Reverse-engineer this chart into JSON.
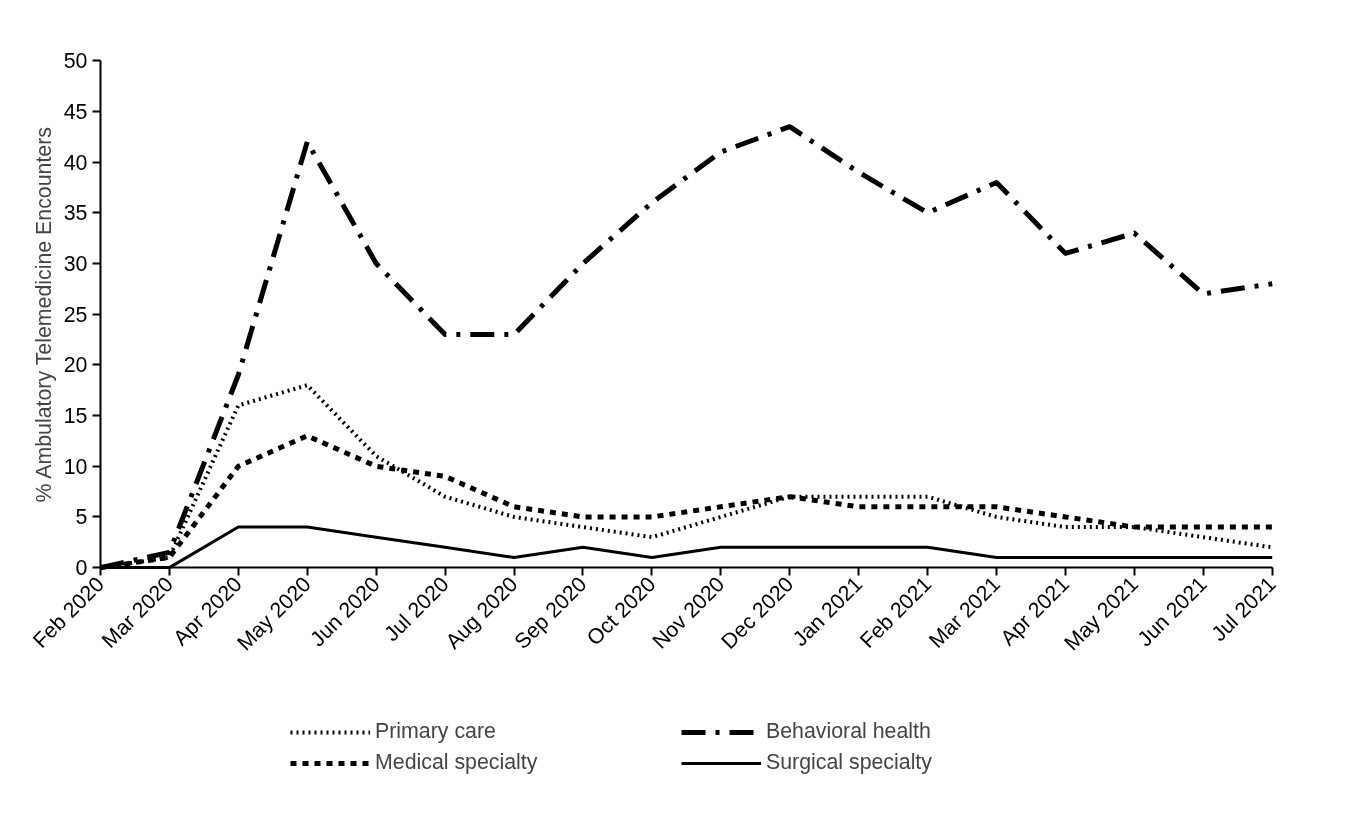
{
  "chart_data": {
    "type": "line",
    "ylabel": "% Ambulatory Telemedicine Encounters",
    "categories": [
      "Feb 2020",
      "Mar 2020",
      "Apr 2020",
      "May 2020",
      "Jun 2020",
      "Jul 2020",
      "Aug 2020",
      "Sep 2020",
      "Oct 2020",
      "Nov 2020",
      "Dec 2020",
      "Jan 2021",
      "Feb 2021",
      "Mar 2021",
      "Apr 2021",
      "May 2021",
      "Jun 2021",
      "Jul 2021"
    ],
    "ylim": [
      0,
      50
    ],
    "yticks": [
      0,
      5,
      10,
      15,
      20,
      25,
      30,
      35,
      40,
      45,
      50
    ],
    "grid": false,
    "legend": "bottom",
    "marker": "none",
    "series": [
      {
        "name": "Primary care",
        "color": "#000000",
        "line_style": "dotted",
        "values": [
          0,
          1,
          16,
          18,
          11,
          7,
          5,
          4,
          3,
          5,
          7,
          7,
          7,
          5,
          4,
          4,
          3,
          2
        ]
      },
      {
        "name": "Behavioral health",
        "color": "#000000",
        "line_style": "dashdot",
        "values": [
          0,
          1.5,
          19,
          42,
          30,
          23,
          23,
          30,
          36,
          41,
          43.5,
          39,
          35,
          38,
          31,
          33,
          27,
          28
        ]
      },
      {
        "name": "Medical specialty",
        "color": "#000000",
        "line_style": "dashed",
        "values": [
          0,
          1,
          10,
          13,
          10,
          9,
          6,
          5,
          5,
          6,
          7,
          6,
          6,
          6,
          5,
          4,
          4,
          4
        ]
      },
      {
        "name": "Surgical specialty",
        "color": "#000000",
        "line_style": "solid",
        "values": [
          0,
          0,
          4,
          4,
          3,
          2,
          1,
          2,
          1,
          2,
          2,
          2,
          2,
          1,
          1,
          1,
          1,
          1
        ]
      }
    ]
  }
}
